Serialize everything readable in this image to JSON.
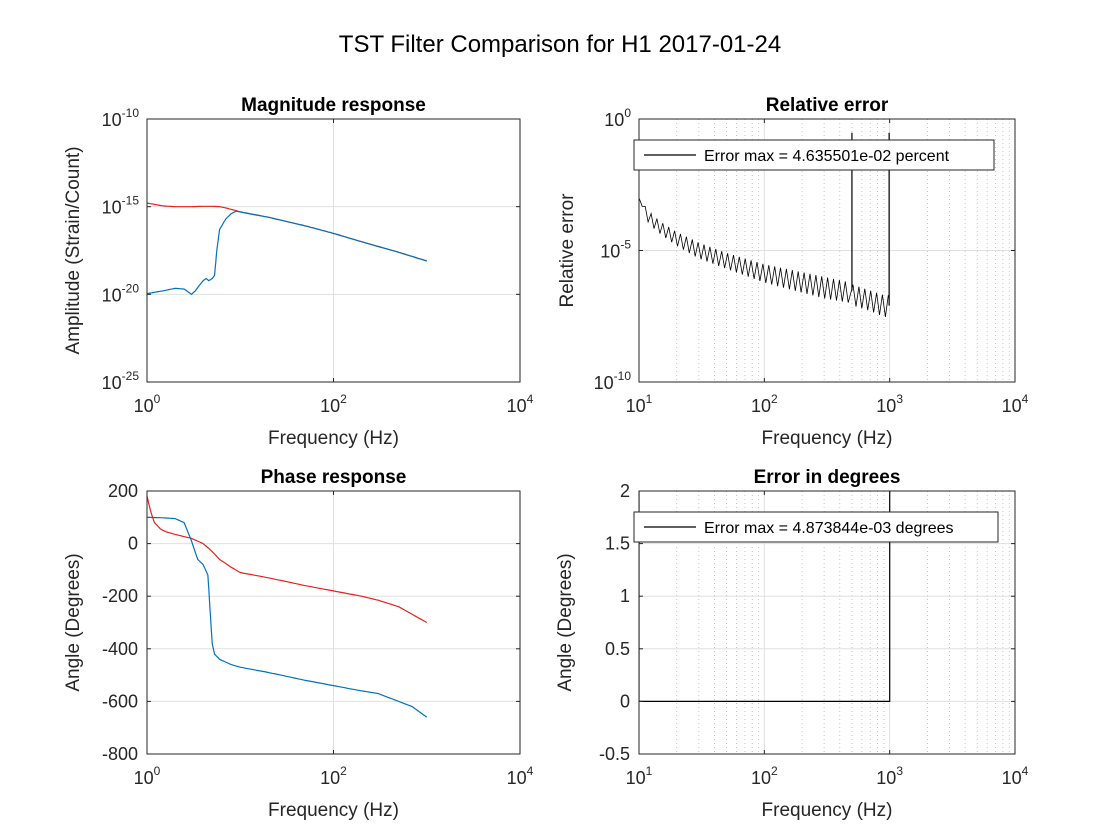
{
  "figure": {
    "title": "TST Filter Comparison for H1 2017-01-24"
  },
  "chart_data": [
    {
      "id": "magnitude",
      "type": "line",
      "title": "Magnitude response",
      "xlabel": "Frequency (Hz)",
      "ylabel": "Amplitude (Strain/Count)",
      "xscale": "log",
      "yscale": "log",
      "xlim": [
        1,
        10000
      ],
      "ylim": [
        1e-25,
        1e-10
      ],
      "grid": "major",
      "xticks": [
        {
          "base": "10",
          "exp": "0",
          "value": 1
        },
        {
          "base": "10",
          "exp": "2",
          "value": 100
        },
        {
          "base": "10",
          "exp": "4",
          "value": 10000
        }
      ],
      "yticks": [
        {
          "base": "10",
          "exp": "-25",
          "value": 1e-25
        },
        {
          "base": "10",
          "exp": "-20",
          "value": 1e-20
        },
        {
          "base": "10",
          "exp": "-15",
          "value": 1e-15
        },
        {
          "base": "10",
          "exp": "-10",
          "value": 1e-10
        }
      ],
      "series": [
        {
          "color": "#e8211d",
          "x": [
            1,
            1.5,
            2,
            3,
            4,
            5,
            6,
            7,
            8,
            9,
            10,
            20,
            50,
            100,
            200,
            500,
            1000
          ],
          "y": [
            1.6e-15,
            1.1e-15,
            1e-15,
            1e-15,
            1.05e-15,
            1.05e-15,
            1e-15,
            8.5e-16,
            7e-16,
            6e-16,
            5e-16,
            2.5e-16,
            8e-17,
            3e-17,
            1e-17,
            2.5e-18,
            8e-19
          ]
        },
        {
          "color": "#0072bd",
          "x": [
            1,
            1.5,
            2,
            2.5,
            2.8,
            3,
            3.3,
            3.6,
            4,
            4.3,
            4.6,
            5,
            5.3,
            5.6,
            6,
            7,
            8,
            9,
            10,
            20,
            50,
            100,
            200,
            500,
            1000
          ],
          "y": [
            1.1e-20,
            1.6e-20,
            2.2e-20,
            2e-20,
            1.3e-20,
            1e-20,
            1.6e-20,
            3e-20,
            6e-20,
            8e-20,
            6e-20,
            8e-20,
            1.2e-19,
            3e-18,
            5e-17,
            2e-16,
            4e-16,
            5.5e-16,
            5e-16,
            2.5e-16,
            8e-17,
            3e-17,
            1e-17,
            2.5e-18,
            8e-19
          ]
        }
      ]
    },
    {
      "id": "relerr",
      "type": "line",
      "title": "Relative error",
      "xlabel": "Frequency (Hz)",
      "ylabel": "Relative error",
      "xscale": "log",
      "yscale": "log",
      "xlim": [
        10,
        10000
      ],
      "ylim": [
        1e-10,
        1
      ],
      "grid": "major+minor",
      "legend": {
        "label": "Error max = 4.635501e-02 percent",
        "location": "top-left"
      },
      "xticks": [
        {
          "base": "10",
          "exp": "1",
          "value": 10
        },
        {
          "base": "10",
          "exp": "2",
          "value": 100
        },
        {
          "base": "10",
          "exp": "3",
          "value": 1000
        },
        {
          "base": "10",
          "exp": "4",
          "value": 10000
        }
      ],
      "yticks": [
        {
          "base": "10",
          "exp": "-10",
          "value": 1e-10
        },
        {
          "base": "10",
          "exp": "-5",
          "value": 1e-05
        },
        {
          "base": "10",
          "exp": "0",
          "value": 1
        }
      ],
      "series": [
        {
          "color": "#000000",
          "style": "oscillating",
          "x": [
            10,
            12,
            15,
            20,
            30,
            50,
            100,
            200,
            300,
            490,
            500,
            510,
            700,
            900,
            1000
          ],
          "y_upper": [
            0.001,
            0.0003,
            0.00012,
            5e-05,
            2e-05,
            8e-06,
            3e-06,
            1.5e-06,
            1e-06,
            6e-07,
            0.3,
            5e-07,
            3e-07,
            2e-07,
            0.3
          ],
          "y_lower": [
            0.001,
            0.0001,
            4e-05,
            1.5e-05,
            5e-06,
            2e-06,
            6e-07,
            2.5e-07,
            1.5e-07,
            1e-07,
            0.3,
            8e-08,
            5e-08,
            3e-08,
            0.3
          ]
        }
      ]
    },
    {
      "id": "phase",
      "type": "line",
      "title": "Phase response",
      "xlabel": "Frequency (Hz)",
      "ylabel": "Angle (Degrees)",
      "xscale": "log",
      "yscale": "linear",
      "xlim": [
        1,
        10000
      ],
      "ylim": [
        -800,
        200
      ],
      "grid": "major",
      "xticks": [
        {
          "base": "10",
          "exp": "0",
          "value": 1
        },
        {
          "base": "10",
          "exp": "2",
          "value": 100
        },
        {
          "base": "10",
          "exp": "4",
          "value": 10000
        }
      ],
      "yticks": [
        {
          "label": "200",
          "value": 200
        },
        {
          "label": "0",
          "value": 0
        },
        {
          "label": "-200",
          "value": -200
        },
        {
          "label": "-400",
          "value": -400
        },
        {
          "label": "-600",
          "value": -600
        },
        {
          "label": "-800",
          "value": -800
        }
      ],
      "series": [
        {
          "color": "#e8211d",
          "x": [
            1,
            1.1,
            1.2,
            1.4,
            1.6,
            2,
            3,
            4,
            5,
            6,
            8,
            10,
            20,
            50,
            100,
            200,
            300,
            500,
            1000
          ],
          "y": [
            180,
            120,
            80,
            55,
            45,
            35,
            20,
            0,
            -30,
            -60,
            -90,
            -110,
            -130,
            -160,
            -180,
            -200,
            -215,
            -240,
            -300
          ]
        },
        {
          "color": "#0072bd",
          "x": [
            1,
            1.5,
            2,
            2.5,
            3,
            3.2,
            3.5,
            4,
            4.5,
            5,
            5.3,
            6,
            8,
            10,
            20,
            50,
            100,
            200,
            300,
            500,
            700,
            1000
          ],
          "y": [
            100,
            98,
            95,
            80,
            10,
            -20,
            -60,
            -80,
            -120,
            -380,
            -420,
            -440,
            -460,
            -470,
            -490,
            -520,
            -540,
            -560,
            -570,
            -600,
            -620,
            -660
          ]
        }
      ]
    },
    {
      "id": "degerr",
      "type": "line",
      "title": "Error in degrees",
      "xlabel": "Frequency (Hz)",
      "ylabel": "Angle (Degrees)",
      "xscale": "log",
      "yscale": "linear",
      "xlim": [
        10,
        10000
      ],
      "ylim": [
        -0.5,
        2
      ],
      "grid": "major+minor",
      "legend": {
        "label": "Error max = 4.873844e-03 degrees",
        "location": "top-left"
      },
      "xticks": [
        {
          "base": "10",
          "exp": "1",
          "value": 10
        },
        {
          "base": "10",
          "exp": "2",
          "value": 100
        },
        {
          "base": "10",
          "exp": "3",
          "value": 1000
        },
        {
          "base": "10",
          "exp": "4",
          "value": 10000
        }
      ],
      "yticks": [
        {
          "label": "2",
          "value": 2
        },
        {
          "label": "1.5",
          "value": 1.5
        },
        {
          "label": "1",
          "value": 1
        },
        {
          "label": "0.5",
          "value": 0.5
        },
        {
          "label": "0",
          "value": 0
        },
        {
          "label": "-0.5",
          "value": -0.5
        }
      ],
      "series": [
        {
          "color": "#000000",
          "x": [
            10,
            10,
            1000,
            1000
          ],
          "y": [
            2,
            0,
            0,
            2
          ]
        }
      ]
    }
  ]
}
